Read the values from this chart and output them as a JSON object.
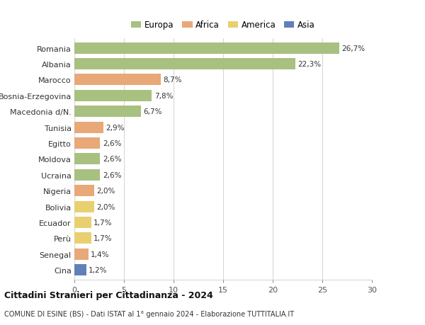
{
  "countries": [
    "Romania",
    "Albania",
    "Marocco",
    "Bosnia-Erzegovina",
    "Macedonia d/N.",
    "Tunisia",
    "Egitto",
    "Moldova",
    "Ucraina",
    "Nigeria",
    "Bolivia",
    "Ecuador",
    "Perù",
    "Senegal",
    "Cina"
  ],
  "values": [
    26.7,
    22.3,
    8.7,
    7.8,
    6.7,
    2.9,
    2.6,
    2.6,
    2.6,
    2.0,
    2.0,
    1.7,
    1.7,
    1.4,
    1.2
  ],
  "labels": [
    "26,7%",
    "22,3%",
    "8,7%",
    "7,8%",
    "6,7%",
    "2,9%",
    "2,6%",
    "2,6%",
    "2,6%",
    "2,0%",
    "2,0%",
    "1,7%",
    "1,7%",
    "1,4%",
    "1,2%"
  ],
  "continents": [
    "Europa",
    "Europa",
    "Africa",
    "Europa",
    "Europa",
    "Africa",
    "Africa",
    "Europa",
    "Europa",
    "Africa",
    "America",
    "America",
    "America",
    "Africa",
    "Asia"
  ],
  "colors": {
    "Europa": "#a8c080",
    "Africa": "#e8a878",
    "America": "#e8d070",
    "Asia": "#6080b8"
  },
  "xlim": [
    0,
    30
  ],
  "xticks": [
    0,
    5,
    10,
    15,
    20,
    25,
    30
  ],
  "title": "Cittadini Stranieri per Cittadinanza - 2024",
  "subtitle": "COMUNE DI ESINE (BS) - Dati ISTAT al 1° gennaio 2024 - Elaborazione TUTTITALIA.IT",
  "bg_color": "#ffffff",
  "grid_color": "#cccccc",
  "bar_height": 0.72
}
